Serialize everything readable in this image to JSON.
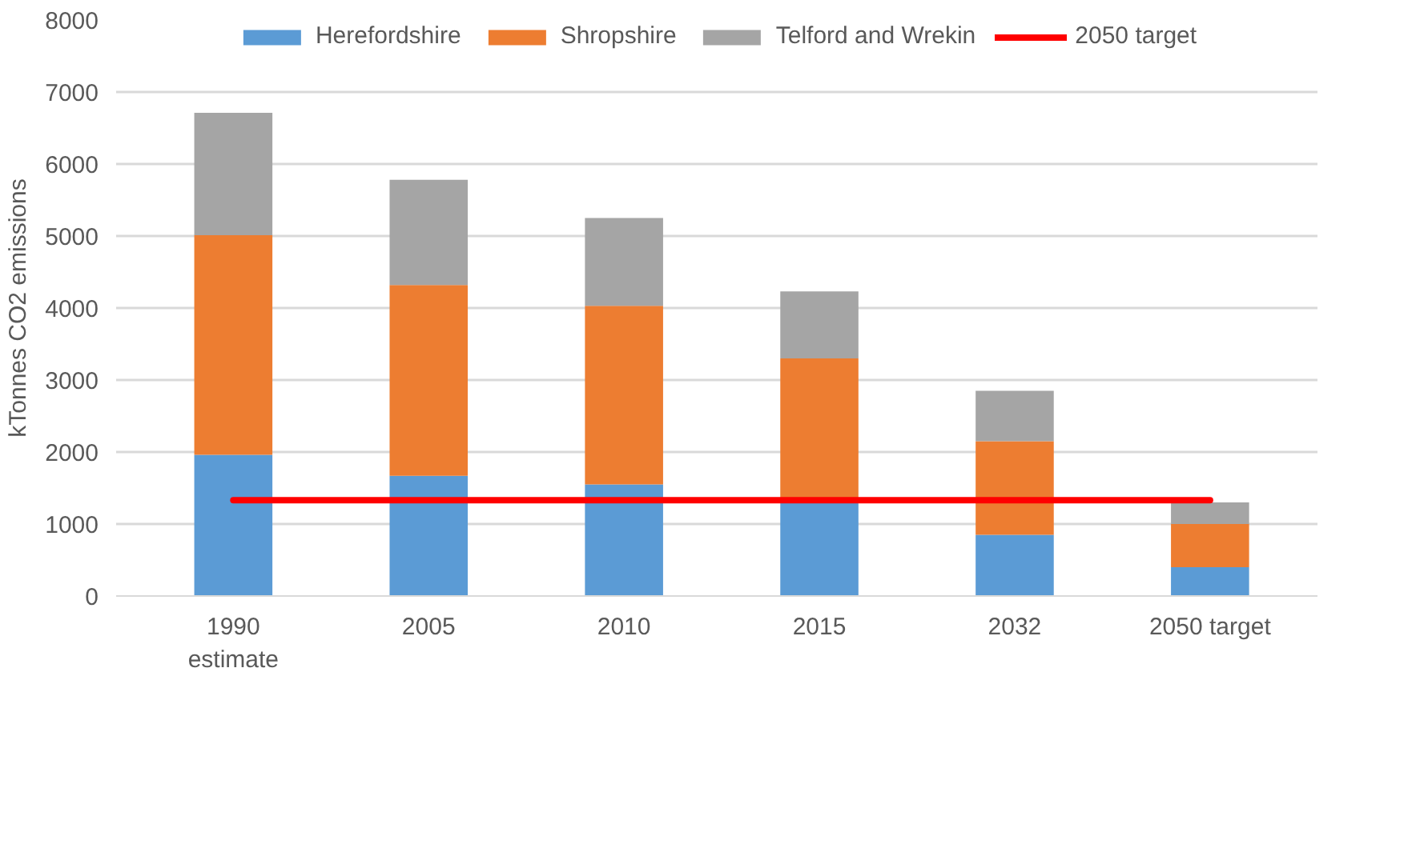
{
  "chart_data": {
    "type": "bar",
    "stacked": true,
    "categories": [
      "1990\nestimate",
      "2005",
      "2010",
      "2015",
      "2032",
      "2050 target"
    ],
    "ylabel": "kTonnes CO2 emissions",
    "ylim": [
      0,
      8000
    ],
    "yticks": [
      0,
      1000,
      2000,
      3000,
      4000,
      5000,
      6000,
      7000,
      8000
    ],
    "grid": "y",
    "legend": "top",
    "series": [
      {
        "name": "Herefordshire",
        "color": "#5b9bd5",
        "values": [
          1960,
          1670,
          1550,
          1320,
          850,
          400
        ]
      },
      {
        "name": "Shropshire",
        "color": "#ed7d31",
        "values": [
          3050,
          2650,
          2480,
          1980,
          1300,
          600
        ]
      },
      {
        "name": "Telford and Wrekin",
        "color": "#a5a5a5",
        "values": [
          1700,
          1460,
          1220,
          930,
          700,
          300
        ]
      },
      {
        "name": "2050 target",
        "type": "line",
        "color": "#ff0000",
        "values": [
          1330,
          1330,
          1330,
          1330,
          1330,
          1330
        ]
      }
    ]
  }
}
